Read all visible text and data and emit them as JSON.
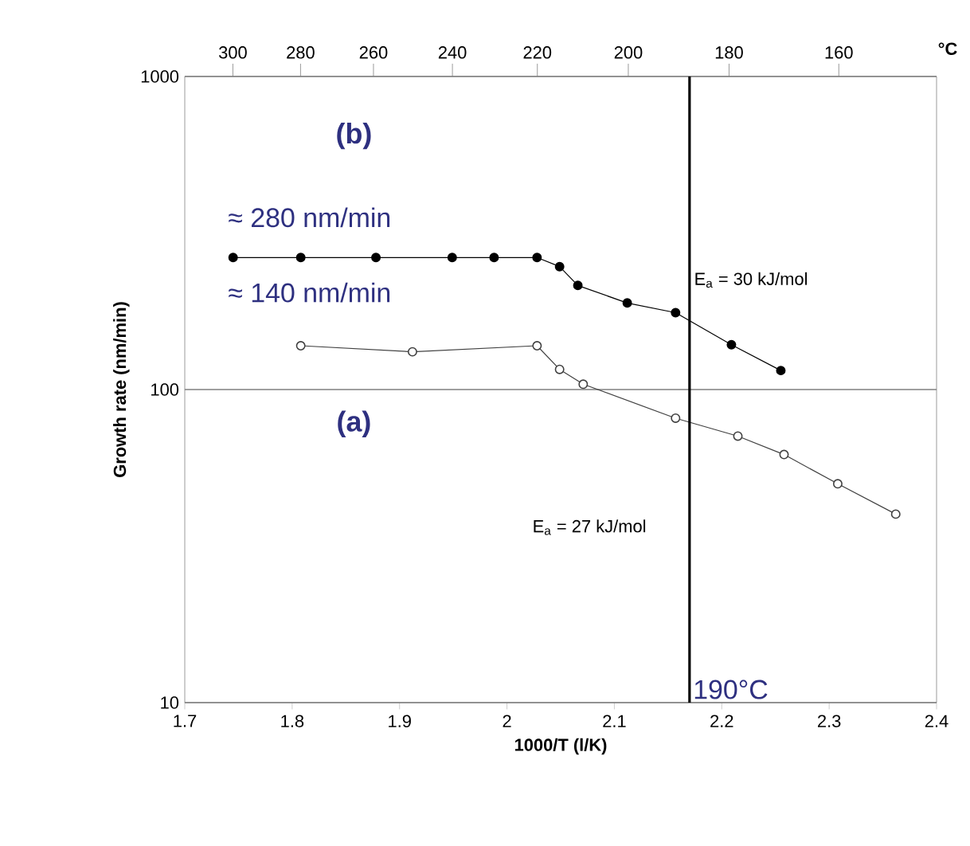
{
  "chart_data": {
    "type": "line",
    "xlabel": "1000/T (l/K)",
    "ylabel": "Growth rate (nm/min)",
    "x2label": "°C",
    "xlim": [
      1.7,
      2.4
    ],
    "xticks": [
      1.7,
      1.8,
      1.9,
      2,
      2.1,
      2.2,
      2.3,
      2.4
    ],
    "ylim": [
      10,
      1000
    ],
    "yticks": [
      10,
      100,
      1000
    ],
    "log": "y",
    "grid": "y",
    "marker": "circle",
    "series": [
      {
        "color": "#000000",
        "x": [
          1.745,
          1.808,
          1.878,
          1.949,
          1.988,
          2.028,
          2.049,
          2.066,
          2.112,
          2.157,
          2.209,
          2.255
        ],
        "values": [
          264,
          264,
          264,
          264,
          264,
          264,
          247,
          215,
          189,
          176,
          139,
          115
        ]
      },
      {
        "color": "#404040",
        "x": [
          1.808,
          1.912,
          2.028,
          2.049,
          2.071,
          2.157,
          2.215,
          2.258,
          2.308,
          2.362
        ],
        "values": [
          138,
          132,
          138,
          116,
          104,
          81,
          71,
          62,
          50,
          40
        ]
      }
    ],
    "ref_lines": [
      {
        "axis": "x",
        "value": 2.17,
        "label": "190°C",
        "color": "#000000"
      }
    ],
    "annotations": [
      "(b)",
      "≈ 280 nm/min",
      "≈ 140 nm/min",
      "(a)",
      "E$_{a}$ = 30 kJ/mol",
      "E$_{a}$ = 27 kJ/mol",
      "300",
      "280",
      "260",
      "240",
      "220",
      "200",
      "180",
      "160"
    ]
  }
}
